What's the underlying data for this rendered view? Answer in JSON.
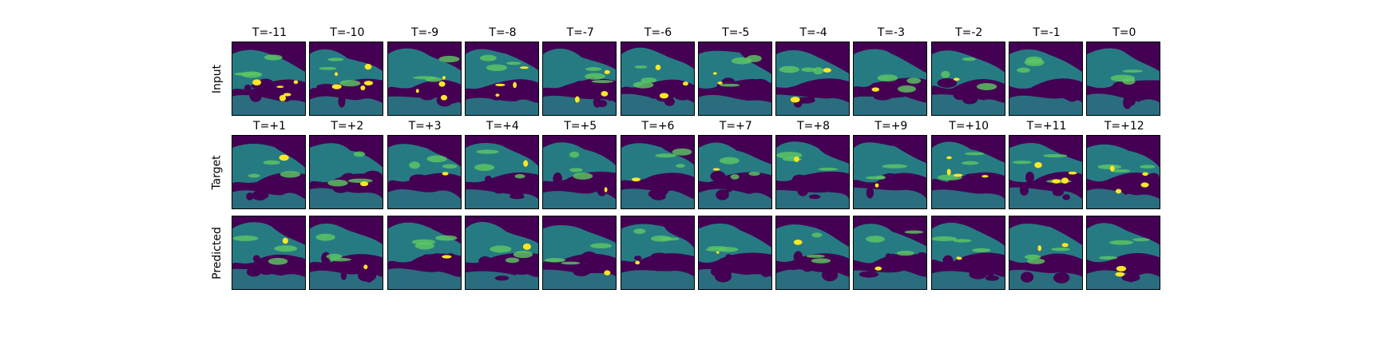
{
  "colormap": "viridis",
  "colors": {
    "background": "#440154",
    "mid": "#21918c",
    "green": "#5ec962",
    "bright": "#fde725"
  },
  "rows": [
    {
      "label": "Input",
      "titles": [
        "T=-11",
        "T=-10",
        "T=-9",
        "T=-8",
        "T=-7",
        "T=-6",
        "T=-5",
        "T=-4",
        "T=-3",
        "T=-2",
        "T=-1",
        "T=0"
      ]
    },
    {
      "label": "Target",
      "titles": [
        "T=+1",
        "T=+2",
        "T=+3",
        "T=+4",
        "T=+5",
        "T=+6",
        "T=+7",
        "T=+8",
        "T=+9",
        "T=+10",
        "T=+11",
        "T=+12"
      ]
    },
    {
      "label": "Predicted",
      "titles": []
    }
  ]
}
